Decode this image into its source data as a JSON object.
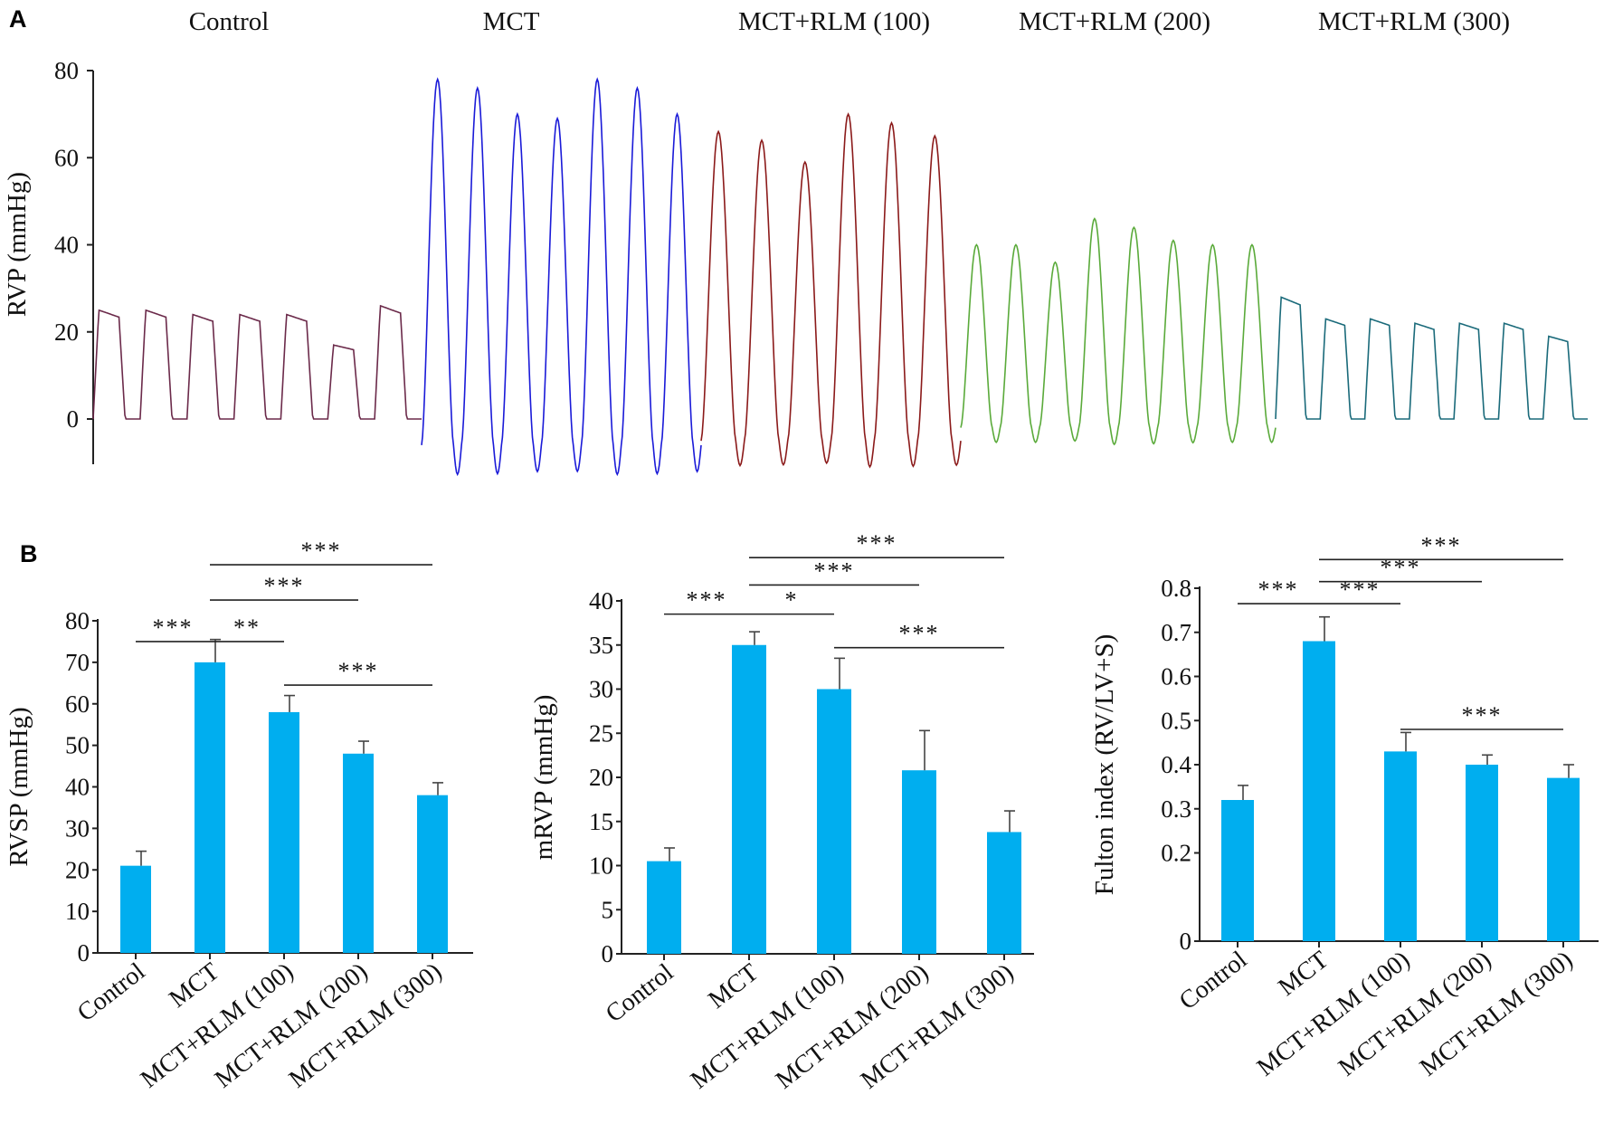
{
  "panel_a": {
    "letter": "A",
    "group_labels": [
      "Control",
      "MCT",
      "MCT+RLM (100)",
      "MCT+RLM (200)",
      "MCT+RLM (300)"
    ]
  },
  "panel_b": {
    "letter": "B"
  },
  "colors": {
    "bar": "#00aeef",
    "trace_control": "#6b2a4a",
    "trace_mct": "#1a1ad8",
    "trace_rlm100": "#8b1a1a",
    "trace_rlm200": "#5aaa3a",
    "trace_rlm300": "#1a6a7a"
  },
  "chart_data": [
    {
      "type": "line",
      "ylabel": "RVP (mmHg)",
      "ylim": [
        -10,
        80
      ],
      "yticks": [
        0,
        20,
        40,
        60,
        80
      ],
      "series": [
        {
          "name": "Control",
          "baseline": 0,
          "peaks": [
            25,
            25,
            24,
            24,
            24,
            17,
            26
          ]
        },
        {
          "name": "MCT",
          "baseline": -6,
          "peaks": [
            78,
            76,
            70,
            69,
            78,
            76,
            70
          ]
        },
        {
          "name": "MCT+RLM (100)",
          "baseline": -5,
          "peaks": [
            66,
            64,
            59,
            70,
            68,
            65
          ]
        },
        {
          "name": "MCT+RLM (200)",
          "baseline": -2,
          "peaks": [
            40,
            40,
            36,
            46,
            44,
            41,
            40,
            40
          ]
        },
        {
          "name": "MCT+RLM (300)",
          "baseline": 0,
          "peaks": [
            28,
            23,
            23,
            22,
            22,
            22,
            19
          ]
        }
      ]
    },
    {
      "type": "bar",
      "ylabel": "RVSP (mmHg)",
      "categories": [
        "Control",
        "MCT",
        "MCT+RLM (100)",
        "MCT+RLM (200)",
        "MCT+RLM (300)"
      ],
      "values": [
        21,
        70,
        58,
        48,
        38
      ],
      "errors": [
        3.5,
        5.5,
        4,
        3,
        3
      ],
      "ylim": [
        0,
        80
      ],
      "yticks": [
        0,
        10,
        20,
        30,
        40,
        50,
        60,
        70,
        80
      ],
      "significance": [
        {
          "from": 0,
          "to": 1,
          "label": "***",
          "y": 75
        },
        {
          "from": 1,
          "to": 2,
          "label": "**",
          "y": 75
        },
        {
          "from": 1,
          "to": 3,
          "label": "***",
          "y": 85
        },
        {
          "from": 1,
          "to": 4,
          "label": "***",
          "y": 93.5
        },
        {
          "from": 2,
          "to": 4,
          "label": "***",
          "y": 64.5
        }
      ]
    },
    {
      "type": "bar",
      "ylabel": "mRVP (mmHg)",
      "categories": [
        "Control",
        "MCT",
        "MCT+RLM (100)",
        "MCT+RLM (200)",
        "MCT+RLM (300)"
      ],
      "values": [
        10.5,
        35,
        30,
        20.8,
        13.8
      ],
      "errors": [
        1.5,
        1.5,
        3.5,
        4.5,
        2.4
      ],
      "ylim": [
        0,
        40
      ],
      "yticks": [
        0,
        5,
        10,
        15,
        20,
        25,
        30,
        35,
        40
      ],
      "significance": [
        {
          "from": 0,
          "to": 1,
          "label": "***",
          "y": 38.5
        },
        {
          "from": 1,
          "to": 2,
          "label": "*",
          "y": 38.5
        },
        {
          "from": 1,
          "to": 3,
          "label": "***",
          "y": 41.8
        },
        {
          "from": 1,
          "to": 4,
          "label": "***",
          "y": 44.9
        },
        {
          "from": 2,
          "to": 4,
          "label": "***",
          "y": 34.7
        }
      ]
    },
    {
      "type": "bar",
      "ylabel": "Fulton index (RV/LV+S)",
      "categories": [
        "Control",
        "MCT",
        "MCT+RLM (100)",
        "MCT+RLM (200)",
        "MCT+RLM (300)"
      ],
      "values": [
        0.32,
        0.68,
        0.43,
        0.4,
        0.37
      ],
      "errors": [
        0.033,
        0.055,
        0.043,
        0.022,
        0.03
      ],
      "ylim": [
        0,
        0.8
      ],
      "yticks": [
        0,
        0.2,
        0.3,
        0.4,
        0.5,
        0.6,
        0.7,
        0.8
      ],
      "significance": [
        {
          "from": 0,
          "to": 1,
          "label": "***",
          "y": 0.765
        },
        {
          "from": 1,
          "to": 2,
          "label": "***",
          "y": 0.765
        },
        {
          "from": 1,
          "to": 3,
          "label": "***",
          "y": 0.815
        },
        {
          "from": 1,
          "to": 4,
          "label": "***",
          "y": 0.865
        },
        {
          "from": 2,
          "to": 4,
          "label": "***",
          "y": 0.48
        }
      ]
    }
  ]
}
